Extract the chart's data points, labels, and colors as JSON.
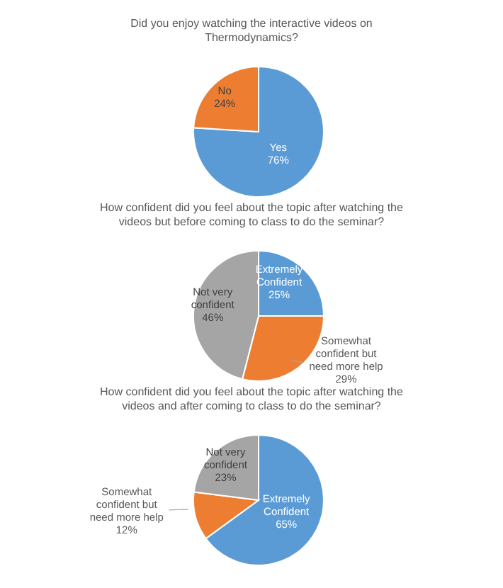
{
  "chart_data": [
    {
      "type": "pie",
      "title": "Did you enjoy watching the interactive videos on Thermodynamics?",
      "categories": [
        "Yes",
        "No"
      ],
      "values": [
        76,
        24
      ],
      "colors": [
        "#5b9bd5",
        "#ed7d31"
      ],
      "value_labels": [
        "76%",
        "24%"
      ]
    },
    {
      "type": "pie",
      "title": "How confident did you feel about the topic after watching the videos but before coming to class to do the seminar?",
      "categories": [
        "Extremely Confident",
        "Somewhat confident but need more help",
        "Not very confident"
      ],
      "values": [
        25,
        29,
        46
      ],
      "colors": [
        "#5b9bd5",
        "#ed7d31",
        "#a5a5a5"
      ],
      "value_labels": [
        "25%",
        "29%",
        "46%"
      ]
    },
    {
      "type": "pie",
      "title": "How confident did you feel about the topic after watching the videos and after coming to class to do the seminar?",
      "categories": [
        "Extremely Confident",
        "Somewhat confident but need more help",
        "Not very confident"
      ],
      "values": [
        65,
        12,
        23
      ],
      "colors": [
        "#5b9bd5",
        "#ed7d31",
        "#a5a5a5"
      ],
      "value_labels": [
        "65%",
        "12%",
        "23%"
      ]
    }
  ]
}
